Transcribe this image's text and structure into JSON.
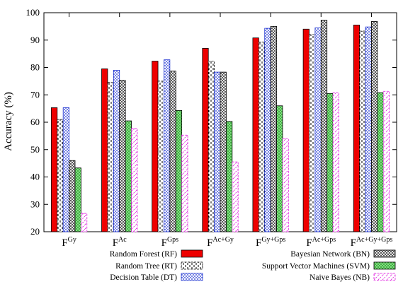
{
  "chart_data": {
    "type": "bar",
    "ylabel": "Accuracy (%)",
    "ylim": [
      20,
      100
    ],
    "yticks": [
      20,
      30,
      40,
      50,
      60,
      70,
      80,
      90,
      100
    ],
    "categories": [
      {
        "base": "F",
        "sup": "Gy"
      },
      {
        "base": "F",
        "sup": "Ac"
      },
      {
        "base": "F",
        "sup": "Gps"
      },
      {
        "base": "F",
        "sup": "Ac+Gy"
      },
      {
        "base": "F",
        "sup": "Gy+Gps"
      },
      {
        "base": "F",
        "sup": "Ac+Gps"
      },
      {
        "base": "F",
        "sup": "Ac+Gy+Gps"
      }
    ],
    "series": [
      {
        "name": "Random Forest (RF)",
        "pattern": "solid-red",
        "values": [
          65.3,
          79.5,
          82.3,
          87.0,
          90.8,
          94.0,
          95.5
        ]
      },
      {
        "name": "Random Tree (RT)",
        "pattern": "dashed-white",
        "values": [
          61.0,
          74.5,
          75.0,
          82.3,
          89.3,
          92.0,
          93.3
        ]
      },
      {
        "name": "Decision Table (DT)",
        "pattern": "blue-dots",
        "values": [
          65.3,
          79.0,
          82.8,
          78.3,
          94.3,
          94.5,
          94.8
        ]
      },
      {
        "name": "Bayesian Network (BN)",
        "pattern": "crosshatch",
        "values": [
          46.0,
          75.3,
          78.7,
          78.3,
          95.0,
          97.3,
          96.8
        ]
      },
      {
        "name": "Support Vector Machines (SVM)",
        "pattern": "green-grid",
        "values": [
          43.3,
          60.5,
          64.3,
          60.3,
          66.0,
          70.5,
          70.8
        ]
      },
      {
        "name": "Naive Bayes (NB)",
        "pattern": "magenta-dash",
        "values": [
          26.7,
          57.7,
          55.3,
          45.5,
          54.0,
          70.8,
          71.3
        ]
      }
    ],
    "legend": {
      "placement": "bottom",
      "columns": 2
    },
    "grid": false
  }
}
